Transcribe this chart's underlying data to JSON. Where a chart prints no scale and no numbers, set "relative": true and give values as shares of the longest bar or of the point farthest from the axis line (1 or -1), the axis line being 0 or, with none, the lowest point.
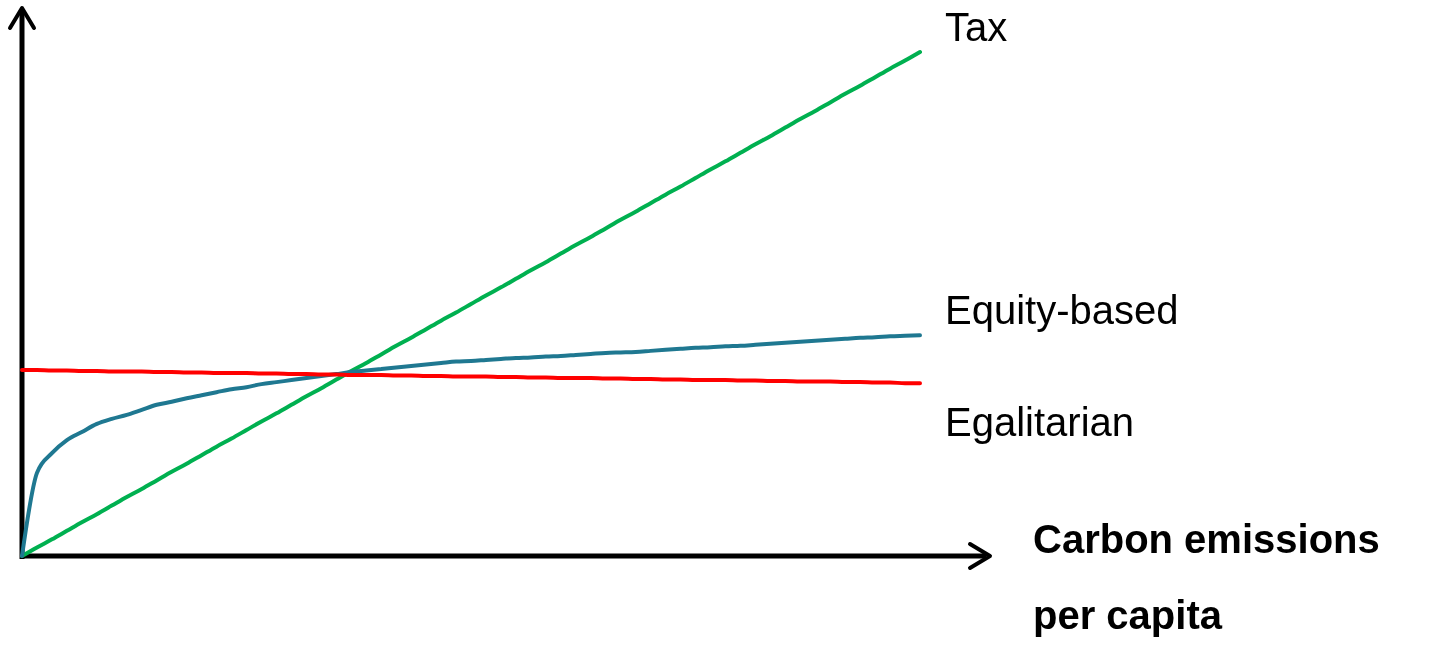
{
  "chart_data": {
    "type": "line",
    "relative": true,
    "xlabel": "Carbon emissions per capita",
    "categories": [
      null,
      null,
      null,
      null,
      null,
      null,
      null,
      null,
      null,
      null,
      null,
      null,
      null,
      null,
      null,
      null,
      null,
      null,
      null,
      null,
      null,
      null,
      null,
      null,
      null,
      null,
      null,
      null,
      null,
      null,
      null,
      null,
      null,
      null,
      null,
      null,
      null,
      null,
      null,
      null,
      null,
      null,
      null,
      null,
      null,
      null,
      null,
      null,
      null,
      null,
      null,
      null,
      null,
      null,
      null,
      null,
      null,
      null,
      null,
      null,
      null
    ],
    "series": [
      {
        "name": "Tax",
        "color": "#00b050",
        "values": [
          0,
          0.017,
          0.033,
          0.05,
          0.067,
          0.083,
          0.1,
          0.117,
          0.133,
          0.15,
          0.167,
          0.183,
          0.2,
          0.217,
          0.233,
          0.25,
          0.267,
          0.283,
          0.3,
          0.317,
          0.333,
          0.35,
          0.367,
          0.383,
          0.4,
          0.417,
          0.433,
          0.45,
          0.467,
          0.483,
          0.5,
          0.517,
          0.533,
          0.55,
          0.567,
          0.583,
          0.6,
          0.617,
          0.633,
          0.65,
          0.667,
          0.683,
          0.7,
          0.717,
          0.733,
          0.75,
          0.767,
          0.783,
          0.8,
          0.817,
          0.833,
          0.85,
          0.867,
          0.883,
          0.9,
          0.917,
          0.933,
          0.95,
          0.967,
          0.983,
          1
        ]
      },
      {
        "name": "Equity-based",
        "color": "#1f7891",
        "values": [
          0,
          0.165,
          0.204,
          0.23,
          0.246,
          0.262,
          0.272,
          0.28,
          0.29,
          0.3,
          0.306,
          0.313,
          0.319,
          0.325,
          0.331,
          0.335,
          0.341,
          0.345,
          0.349,
          0.353,
          0.357,
          0.361,
          0.365,
          0.368,
          0.371,
          0.374,
          0.377,
          0.38,
          0.383,
          0.386,
          0.387,
          0.389,
          0.391,
          0.393,
          0.394,
          0.396,
          0.397,
          0.399,
          0.401,
          0.403,
          0.404,
          0.405,
          0.407,
          0.409,
          0.411,
          0.413,
          0.414,
          0.416,
          0.417,
          0.419,
          0.421,
          0.423,
          0.425,
          0.427,
          0.429,
          0.431,
          0.433,
          0.434,
          0.436,
          0.437,
          0.438
        ]
      },
      {
        "name": "Egalitarian",
        "color": "#ff0000",
        "values": [
          0.369,
          0.369,
          0.368,
          0.368,
          0.367,
          0.367,
          0.366,
          0.366,
          0.366,
          0.365,
          0.365,
          0.364,
          0.364,
          0.363,
          0.363,
          0.363,
          0.362,
          0.362,
          0.361,
          0.361,
          0.36,
          0.36,
          0.359,
          0.359,
          0.359,
          0.358,
          0.358,
          0.357,
          0.357,
          0.356,
          0.356,
          0.356,
          0.355,
          0.355,
          0.354,
          0.354,
          0.353,
          0.353,
          0.353,
          0.352,
          0.352,
          0.351,
          0.351,
          0.35,
          0.35,
          0.349,
          0.349,
          0.349,
          0.348,
          0.348,
          0.347,
          0.347,
          0.346,
          0.346,
          0.346,
          0.345,
          0.345,
          0.344,
          0.344,
          0.343,
          0.343
        ]
      }
    ]
  }
}
